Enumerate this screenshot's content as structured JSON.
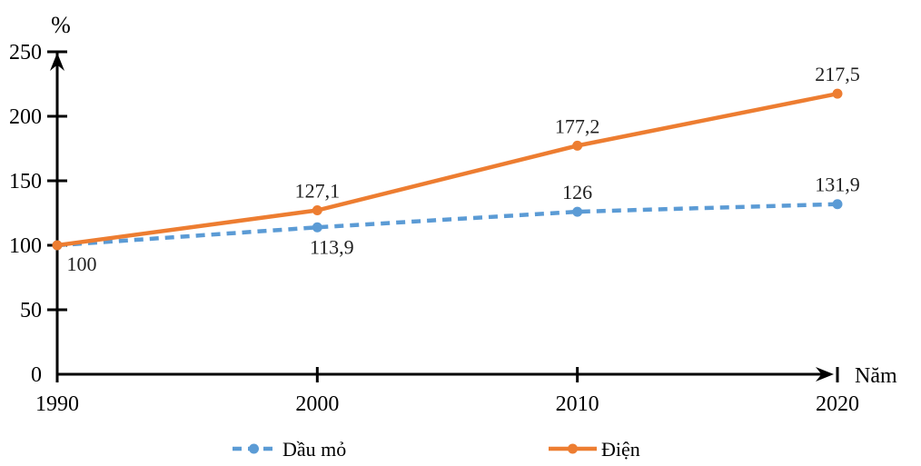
{
  "chart_data": {
    "type": "line",
    "categories": [
      "1990",
      "2000",
      "2010",
      "2020"
    ],
    "series": [
      {
        "name": "Dầu mỏ",
        "values": [
          100,
          113.9,
          126,
          131.9
        ],
        "point_labels": [
          "100",
          "113,9",
          "126",
          "131,9"
        ],
        "label_positions": [
          "below-right",
          "below",
          "above",
          "above"
        ],
        "color": "#5B9BD5",
        "line_style": "dashed",
        "marker": "circle"
      },
      {
        "name": "Điện",
        "values": [
          100,
          127.1,
          177.2,
          217.5
        ],
        "point_labels": [
          "",
          "127,1",
          "177,2",
          "217,5"
        ],
        "label_positions": [
          "above",
          "above",
          "above",
          "above"
        ],
        "color": "#ED7D31",
        "line_style": "solid",
        "marker": "circle"
      }
    ],
    "title": "",
    "xlabel": "Năm",
    "ylabel": "%",
    "ylim": [
      0,
      250
    ],
    "y_ticks": [
      "0",
      "50",
      "100",
      "150",
      "200",
      "250"
    ],
    "grid": false,
    "legend_position": "bottom"
  }
}
